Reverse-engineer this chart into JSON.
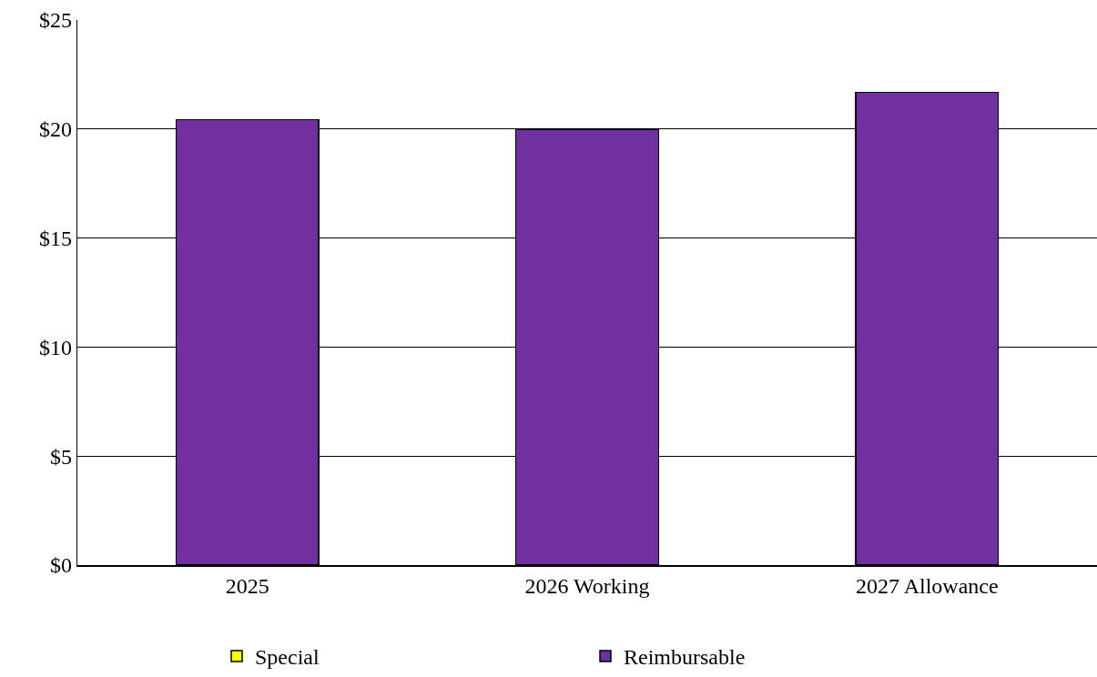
{
  "chart_data": {
    "type": "bar",
    "stacked": true,
    "categories": [
      "2025",
      "2026 Working",
      "2027 Allowance"
    ],
    "series": [
      {
        "name": "Special",
        "color": "#ffff00",
        "values": [
          0,
          0,
          0
        ]
      },
      {
        "name": "Reimbursable",
        "color": "#7030a0",
        "values": [
          20.43,
          20.0,
          21.68
        ]
      }
    ],
    "ylim": [
      0,
      25
    ],
    "yticks": [
      {
        "value": 0,
        "label": "$0"
      },
      {
        "value": 5,
        "label": "$5"
      },
      {
        "value": 10,
        "label": "$10"
      },
      {
        "value": 15,
        "label": "$15"
      },
      {
        "value": 20,
        "label": "$20"
      },
      {
        "value": 25,
        "label": "$25"
      }
    ],
    "grid": "y",
    "legend": "bottom"
  }
}
